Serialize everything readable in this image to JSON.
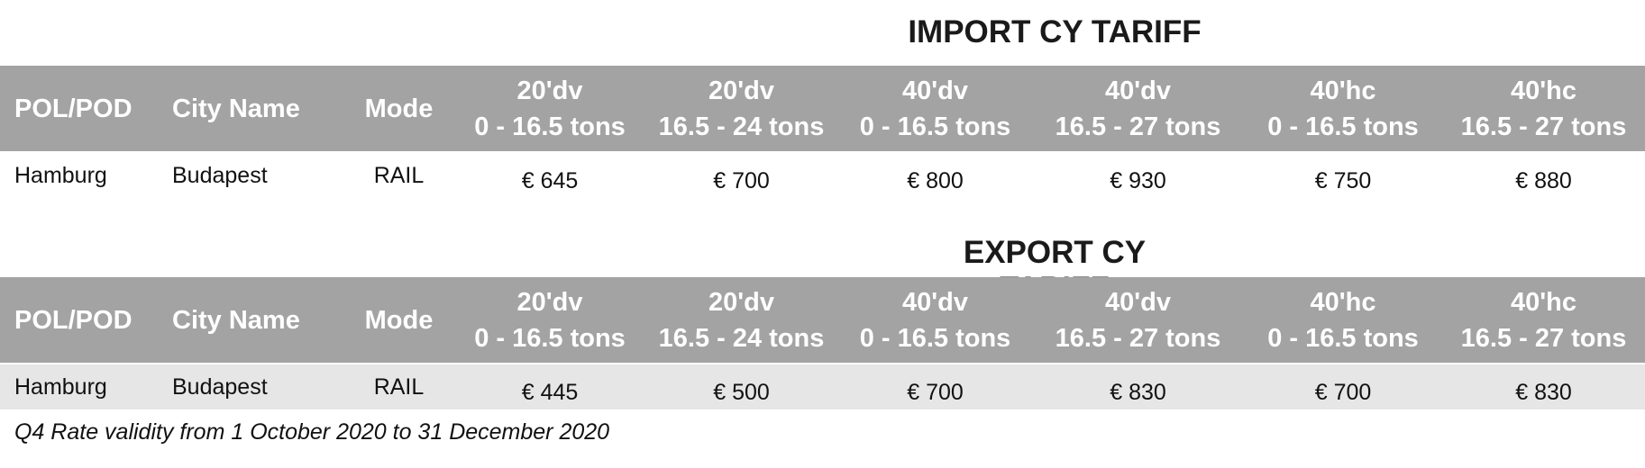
{
  "import": {
    "title": "IMPORT CY TARIFF",
    "headers": {
      "pol_pod": "POL/POD",
      "city": "City Name",
      "mode": "Mode",
      "cols": [
        {
          "l1": "20'dv",
          "l2": "0 - 16.5 tons"
        },
        {
          "l1": "20'dv",
          "l2": "16.5 - 24 tons"
        },
        {
          "l1": "40'dv",
          "l2": "0 - 16.5 tons"
        },
        {
          "l1": "40'dv",
          "l2": "16.5 - 27 tons"
        },
        {
          "l1": "40'hc",
          "l2": "0 - 16.5 tons"
        },
        {
          "l1": "40'hc",
          "l2": "16.5 - 27 tons"
        }
      ]
    },
    "row": {
      "pol_pod": "Hamburg",
      "city": "Budapest",
      "mode": "RAIL",
      "rates": [
        "€ 645",
        "€ 700",
        "€ 800",
        "€ 930",
        "€ 750",
        "€ 880"
      ]
    }
  },
  "export": {
    "title": "EXPORT CY TARIFF",
    "headers": {
      "pol_pod": "POL/POD",
      "city": "City Name",
      "mode": "Mode",
      "cols": [
        {
          "l1": "20'dv",
          "l2": "0 - 16.5 tons"
        },
        {
          "l1": "20'dv",
          "l2": "16.5 - 24 tons"
        },
        {
          "l1": "40'dv",
          "l2": "0 - 16.5 tons"
        },
        {
          "l1": "40'dv",
          "l2": "16.5 - 27 tons"
        },
        {
          "l1": "40'hc",
          "l2": "0 - 16.5 tons"
        },
        {
          "l1": "40'hc",
          "l2": "16.5 - 27 tons"
        }
      ]
    },
    "row": {
      "pol_pod": "Hamburg",
      "city": "Budapest",
      "mode": "RAIL",
      "rates": [
        "€ 445",
        "€ 500",
        "€ 700",
        "€ 830",
        "€ 700",
        "€ 830"
      ]
    }
  },
  "footnote": "Q4 Rate validity from 1 October 2020 to 31 December 2020",
  "colors": {
    "header_bg": "#a3a3a3",
    "header_text": "#ffffff",
    "shaded_row": "#e6e6e6"
  }
}
